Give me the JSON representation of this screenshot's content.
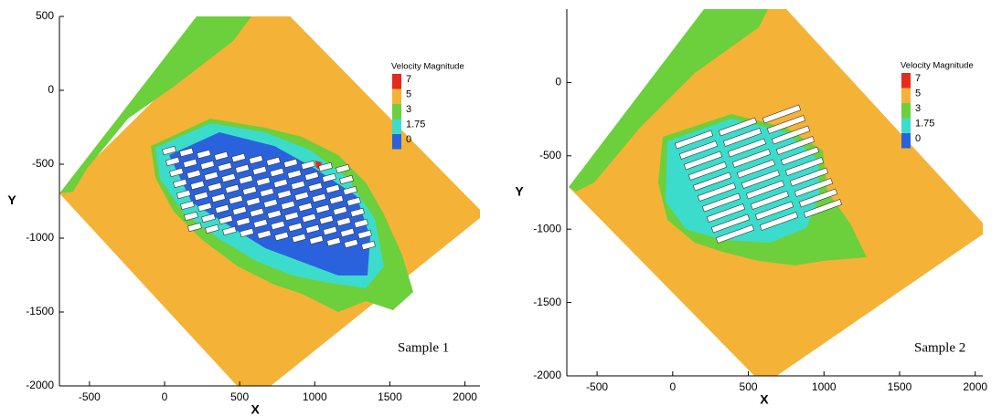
{
  "chart_data": [
    {
      "type": "contour",
      "xlabel": "X",
      "ylabel": "Y",
      "xlim": [
        -700,
        2100
      ],
      "ylim": [
        -2000,
        500
      ],
      "xticks": [
        -500,
        0,
        500,
        1000,
        1500,
        2000
      ],
      "yticks": [
        -2000,
        -1500,
        -1000,
        -500,
        0,
        500
      ],
      "legend": {
        "title": "Velocity Magnitude",
        "levels": [
          7,
          5,
          3,
          1.75,
          0
        ],
        "colors": [
          "#e52a1e",
          "#f4b336",
          "#6ccf3c",
          "#3cdccc",
          "#2a62de"
        ]
      },
      "annotation": "Sample 1"
    },
    {
      "type": "contour",
      "xlabel": "X",
      "ylabel": "Y",
      "xlim": [
        -700,
        2050
      ],
      "ylim": [
        -2000,
        500
      ],
      "xticks": [
        -500,
        0,
        500,
        1000,
        1500,
        2000
      ],
      "yticks": [
        -2000,
        -1500,
        -1000,
        -500,
        0
      ],
      "legend": {
        "title": "Velocity Magnitude",
        "levels": [
          7,
          5,
          3,
          1.75,
          0
        ],
        "colors": [
          "#e52a1e",
          "#f4b336",
          "#6ccf3c",
          "#3cdccc",
          "#2a62de"
        ]
      },
      "annotation": "Sample 2"
    }
  ]
}
